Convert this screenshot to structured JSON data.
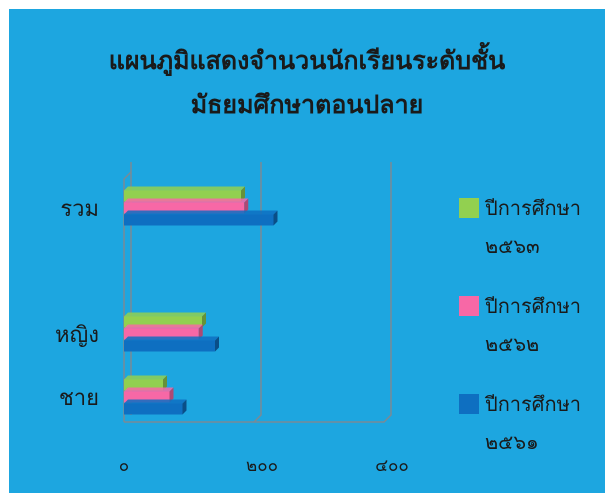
{
  "chart_data": {
    "type": "bar",
    "orientation": "horizontal",
    "title_line1": "แผนภูมิแสดงจำนวนนักเรียนระดับชั้น",
    "title_line2": "มัธยมศึกษาตอนปลาย",
    "categories": [
      "ชาย",
      "หญิง",
      "รวม"
    ],
    "series": [
      {
        "name": "ปีการศึกษา ๒๕๖๑",
        "color": "#0E6FC1",
        "values": [
          90,
          140,
          230
        ]
      },
      {
        "name": "ปีการศึกษา ๒๕๖๒",
        "color": "#F768A6",
        "values": [
          70,
          115,
          185
        ]
      },
      {
        "name": "ปีการศึกษา ๒๕๖๓",
        "color": "#92D050",
        "values": [
          60,
          120,
          180
        ]
      }
    ],
    "x_ticks": [
      "๐",
      "๒๐๐",
      "๔๐๐"
    ],
    "x_tick_values": [
      0,
      200,
      400
    ],
    "xlim": [
      0,
      400
    ],
    "legend_position": "right",
    "grid": true
  }
}
